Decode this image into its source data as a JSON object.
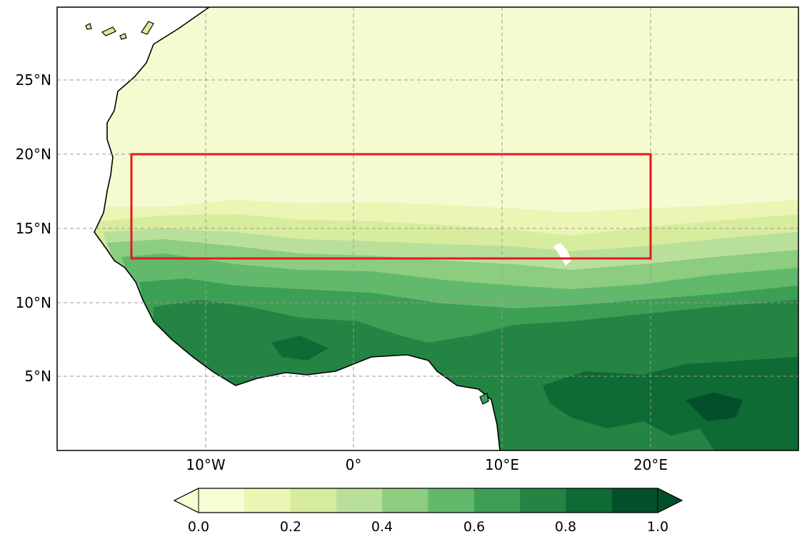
{
  "map": {
    "lat_ticks": [
      "25°N",
      "20°N",
      "15°N",
      "10°N",
      "5°N"
    ],
    "lon_ticks": [
      "10°W",
      "0°",
      "10°E",
      "20°E"
    ],
    "extent": {
      "lon": [
        -20,
        30
      ],
      "lat": [
        0,
        30
      ]
    },
    "region_box": {
      "lon": [
        -15,
        20
      ],
      "lat": [
        13,
        20
      ],
      "color": "#e8171c"
    }
  },
  "colorbar": {
    "ticks": [
      "0.0",
      "0.2",
      "0.4",
      "0.6",
      "0.8",
      "1.0"
    ],
    "range": [
      0.0,
      1.0
    ],
    "step": 0.1,
    "extend": "both",
    "colormap": "Greens",
    "colors": [
      "#f7fcd3",
      "#ebf5b4",
      "#d7ec9d",
      "#b8e09a",
      "#8ccd7f",
      "#62b96c",
      "#3c9f54",
      "#238444",
      "#0d6b33",
      "#02502a"
    ]
  },
  "grid": "on"
}
